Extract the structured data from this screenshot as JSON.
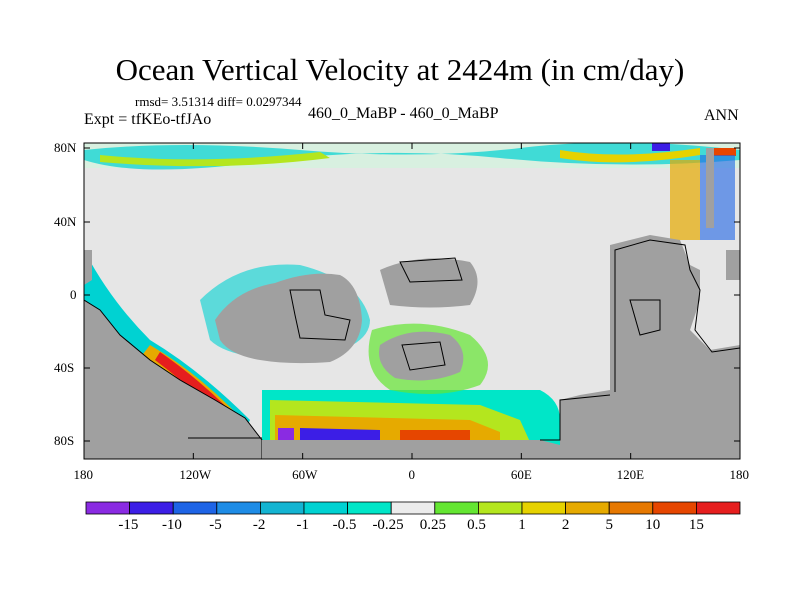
{
  "title": "Ocean Vertical Velocity at 2424m (in cm/day)",
  "stats_line": "rmsd= 3.51314 diff= 0.0297344",
  "expt_line": "Expt = tfKEo-tfJAo",
  "center_line": "460_0_MaBP - 460_0_MaBP",
  "season": "ANN",
  "map": {
    "lon_ticks": [
      "180",
      "120W",
      "60W",
      "0",
      "60E",
      "120E",
      "180"
    ],
    "lat_ticks": [
      "80N",
      "40N",
      "0",
      "40S",
      "80S"
    ],
    "land_color": "#a0a0a0",
    "small_color": "#e6e6e6"
  },
  "colorbar": {
    "labels": [
      "-15",
      "-10",
      "-5",
      "-2",
      "-1",
      "-0.5",
      "-0.25",
      "0.25",
      "0.5",
      "1",
      "2",
      "5",
      "10",
      "15"
    ],
    "colors": [
      "#8a2be2",
      "#3c1ee6",
      "#1e64e6",
      "#1e8ce6",
      "#14b4d2",
      "#00d2d2",
      "#00e6c8",
      "#ececec",
      "#64e632",
      "#b4e61e",
      "#e6d200",
      "#e6aa00",
      "#e67800",
      "#e64600",
      "#e61e1e"
    ]
  }
}
